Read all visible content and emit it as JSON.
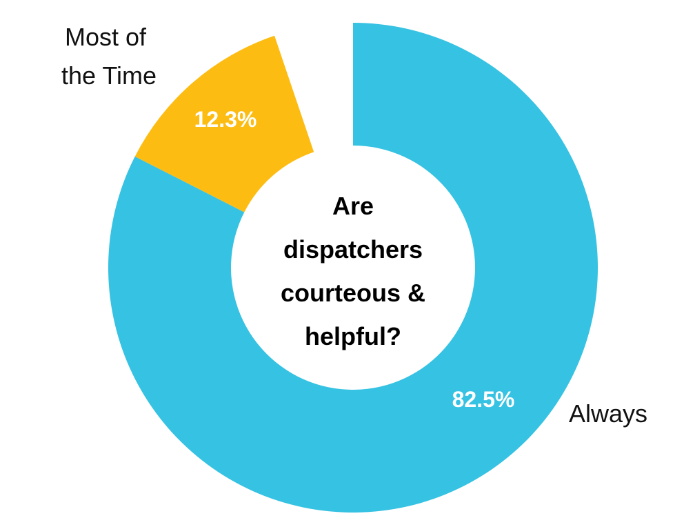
{
  "chart_data": {
    "type": "pie",
    "title": "Are dispatchers courteous & helpful?",
    "title_lines": [
      "Are",
      "dispatchers",
      "courteous &",
      "helpful?"
    ],
    "categories": [
      "Always",
      "Most of the Time"
    ],
    "values": [
      82.5,
      12.3
    ],
    "value_labels": [
      "82.5%",
      "12.3%"
    ],
    "label_lines": [
      [
        "Always"
      ],
      [
        "Most of",
        "the Time"
      ]
    ],
    "colors": [
      "#36C2E2",
      "#FCBC12"
    ],
    "hole": true,
    "grid": false,
    "legend": "none"
  }
}
